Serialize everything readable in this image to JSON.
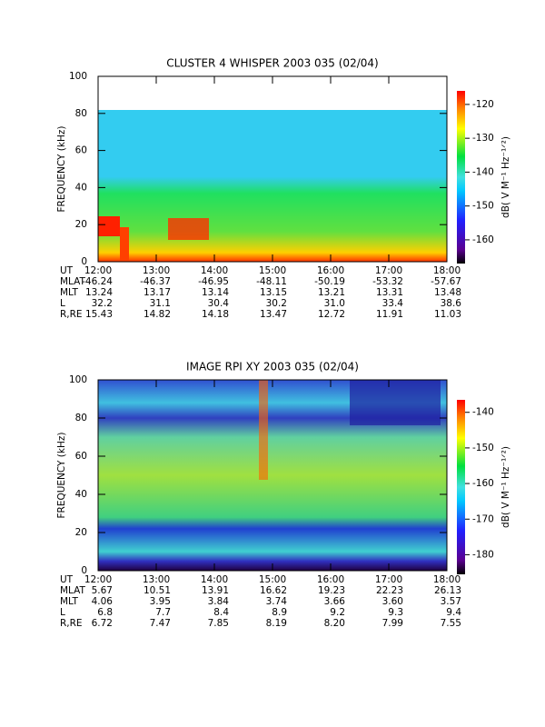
{
  "chart_data": [
    {
      "type": "spectrogram",
      "title": "CLUSTER 4 WHISPER 2003 035 (02/04)",
      "y_label": "FREQUENCY (kHz)",
      "ylim": [
        0,
        100
      ],
      "yticks": [
        0,
        20,
        40,
        60,
        80,
        100
      ],
      "x_label": "UT",
      "categories": [
        "12:00",
        "13:00",
        "14:00",
        "15:00",
        "16:00",
        "17:00",
        "18:00"
      ],
      "colorbar_label": "dB( V M⁻¹ Hz⁻¹ᐟ²)",
      "clim": [
        -167,
        -116
      ],
      "cticks": [
        -160,
        -150,
        -140,
        -130,
        -120
      ],
      "ephemeris": [
        {
          "label": "MLAT",
          "values": [
            "-46.24",
            "-46.37",
            "-46.95",
            "-48.11",
            "-50.19",
            "-53.32",
            "-57.67"
          ]
        },
        {
          "label": "MLT",
          "values": [
            "13.24",
            "13.17",
            "13.14",
            "13.15",
            "13.21",
            "13.31",
            "13.48"
          ]
        },
        {
          "label": "L",
          "values": [
            "32.2",
            "31.1",
            "30.4",
            "30.2",
            "31.0",
            "33.4",
            "38.6"
          ]
        },
        {
          "label": "R,RE",
          "values": [
            "15.43",
            "14.82",
            "14.18",
            "13.47",
            "12.72",
            "11.91",
            "11.03"
          ]
        }
      ]
    },
    {
      "type": "spectrogram",
      "title": "IMAGE RPI XY 2003 035 (02/04)",
      "y_label": "FREQUENCY (kHz)",
      "ylim": [
        0,
        100
      ],
      "yticks": [
        0,
        20,
        40,
        60,
        80,
        100
      ],
      "x_label": "UT",
      "categories": [
        "12:00",
        "13:00",
        "14:00",
        "15:00",
        "16:00",
        "17:00",
        "18:00"
      ],
      "colorbar_label": "dB( V M⁻¹ Hz⁻¹ᐟ²)",
      "clim": [
        -185.5,
        -136.5
      ],
      "cticks": [
        -180,
        -170,
        -160,
        -150,
        -140
      ],
      "ephemeris": [
        {
          "label": "MLAT",
          "values": [
            "5.67",
            "10.51",
            "13.91",
            "16.62",
            "19.23",
            "22.23",
            "26.13"
          ]
        },
        {
          "label": "MLT",
          "values": [
            "4.06",
            "3.95",
            "3.84",
            "3.74",
            "3.66",
            "3.60",
            "3.57"
          ]
        },
        {
          "label": "L",
          "values": [
            "6.8",
            "7.7",
            "8.4",
            "8.9",
            "9.2",
            "9.3",
            "9.4"
          ]
        },
        {
          "label": "R,RE",
          "values": [
            "6.72",
            "7.47",
            "7.85",
            "8.19",
            "8.20",
            "7.99",
            "7.55"
          ]
        }
      ]
    }
  ]
}
